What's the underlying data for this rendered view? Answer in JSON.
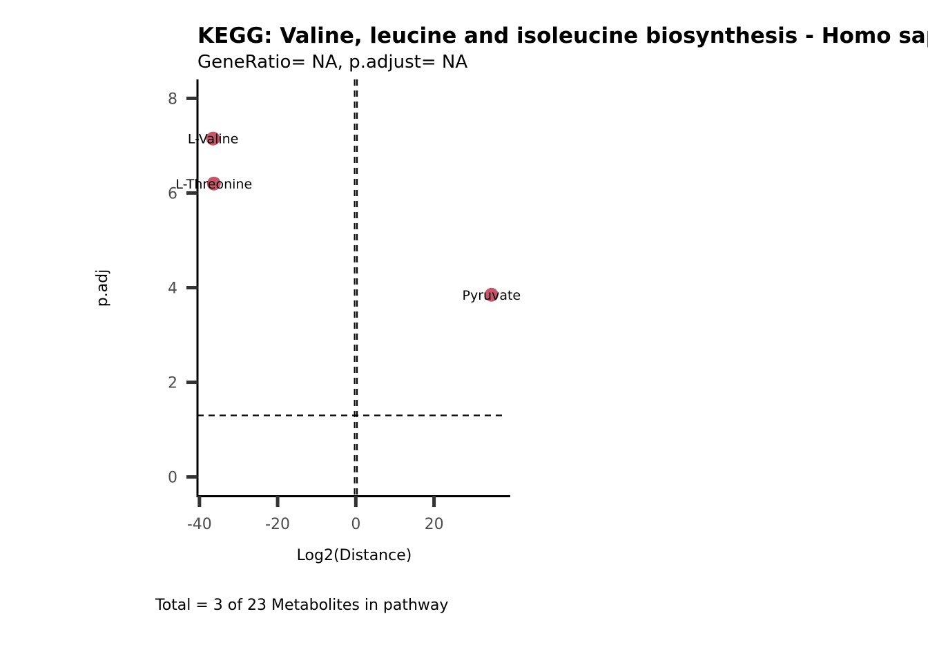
{
  "chart_data": {
    "type": "scatter",
    "title": "KEGG: Valine, leucine and isoleucine biosynthesis - Homo sapiens (human)",
    "subtitle": "GeneRatio= NA, p.adjust= NA",
    "xlabel": "Log2(Distance)",
    "ylabel": "p.adj",
    "caption": "Total = 3 of 23 Metabolites in pathway",
    "xlim": [
      -40.5,
      39.5
    ],
    "ylim": [
      -0.4,
      8.4
    ],
    "x_ticks": [
      -40,
      -20,
      0,
      20
    ],
    "y_ticks": [
      0,
      2,
      4,
      6,
      8
    ],
    "x_tick_labels": [
      "-40",
      "-20",
      "0",
      "20"
    ],
    "y_tick_labels": [
      "0",
      "2",
      "4",
      "6",
      "8"
    ],
    "point_color": "#c8566b",
    "grid": false,
    "reference_lines": {
      "horizontal_y": 1.3,
      "vertical_x": [
        -0.3,
        0.3
      ]
    },
    "points": [
      {
        "label": "L-Valine",
        "x": -36.5,
        "y": 7.15
      },
      {
        "label": "L-Threonine",
        "x": -36.3,
        "y": 6.2
      },
      {
        "label": "Pyruvate",
        "x": 34.7,
        "y": 3.85
      }
    ]
  }
}
